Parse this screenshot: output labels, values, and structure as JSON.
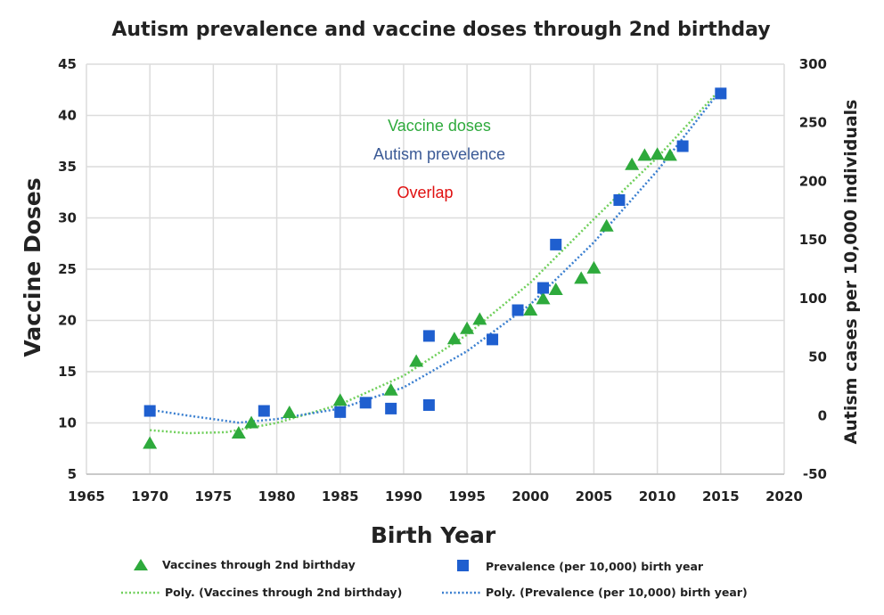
{
  "chart_data": {
    "type": "scatter",
    "title": "Autism prevalence and vaccine doses through 2nd birthday",
    "xlabel": "Birth Year",
    "ylabel_left": "Vaccine Doses",
    "ylabel_right": "Autism cases per 10,000 individuals",
    "xlim": [
      1965,
      2020
    ],
    "ylim_left": [
      5,
      45
    ],
    "ylim_right": [
      -50,
      300
    ],
    "x_ticks": [
      1965,
      1970,
      1975,
      1980,
      1985,
      1990,
      1995,
      2000,
      2005,
      2010,
      2015,
      2020
    ],
    "y_ticks_left": [
      5,
      10,
      15,
      20,
      25,
      30,
      35,
      40,
      45
    ],
    "y_ticks_right": [
      -50,
      0,
      50,
      100,
      150,
      200,
      250,
      300
    ],
    "grid": true,
    "legend_position": "bottom",
    "annotations": [
      {
        "text": "Vaccine doses",
        "color": "#2eaa3c"
      },
      {
        "text": "Autism prevelence",
        "color": "#3b5a96"
      },
      {
        "text": "Overlap",
        "color": "#e01010"
      }
    ],
    "series": [
      {
        "name": "Vaccines through 2nd birthday",
        "axis": "left",
        "marker": "triangle",
        "color": "#2eaa3c",
        "points": [
          [
            1970,
            8
          ],
          [
            1977,
            9
          ],
          [
            1978,
            10
          ],
          [
            1981,
            11
          ],
          [
            1985,
            12.2
          ],
          [
            1989,
            13.2
          ],
          [
            1991,
            16
          ],
          [
            1994,
            18.2
          ],
          [
            1995,
            19.2
          ],
          [
            1996,
            20.1
          ],
          [
            2000,
            21
          ],
          [
            2001,
            22.1
          ],
          [
            2002,
            23
          ],
          [
            2004,
            24.1
          ],
          [
            2005,
            25.1
          ],
          [
            2006,
            29.2
          ],
          [
            2008,
            35.2
          ],
          [
            2009,
            36.1
          ],
          [
            2010,
            36.2
          ],
          [
            2011,
            36.1
          ]
        ]
      },
      {
        "name": "Prevalence (per 10,000) birth year",
        "axis": "right",
        "marker": "square",
        "color": "#1f5fcf",
        "points": [
          [
            1970,
            4
          ],
          [
            1979,
            4
          ],
          [
            1985,
            3
          ],
          [
            1987,
            11
          ],
          [
            1989,
            6
          ],
          [
            1992,
            9
          ],
          [
            1992,
            68
          ],
          [
            1997,
            65
          ],
          [
            1999,
            90
          ],
          [
            2001,
            109
          ],
          [
            2002,
            146
          ],
          [
            2007,
            184
          ],
          [
            2012,
            230
          ],
          [
            2015,
            275
          ]
        ]
      },
      {
        "name": "Poly. (Vaccines through 2nd birthday)",
        "axis": "left",
        "line_style": "dotted",
        "color": "#6fcf5a",
        "points": [
          [
            1970,
            9.3
          ],
          [
            1973,
            9.0
          ],
          [
            1976,
            9.1
          ],
          [
            1980,
            10.0
          ],
          [
            1985,
            11.8
          ],
          [
            1990,
            14.6
          ],
          [
            1995,
            18.6
          ],
          [
            2000,
            23.7
          ],
          [
            2005,
            29.9
          ],
          [
            2010,
            35.9
          ],
          [
            2015,
            42.6
          ]
        ]
      },
      {
        "name": "Poly. (Prevalence (per 10,000) birth year)",
        "axis": "right",
        "line_style": "dotted",
        "color": "#3a7fd0",
        "points": [
          [
            1970,
            5
          ],
          [
            1973,
            0
          ],
          [
            1977,
            -6
          ],
          [
            1980,
            -3
          ],
          [
            1985,
            6
          ],
          [
            1990,
            24
          ],
          [
            1995,
            55
          ],
          [
            2000,
            95
          ],
          [
            2005,
            148
          ],
          [
            2010,
            209
          ],
          [
            2015,
            278
          ]
        ]
      }
    ]
  }
}
